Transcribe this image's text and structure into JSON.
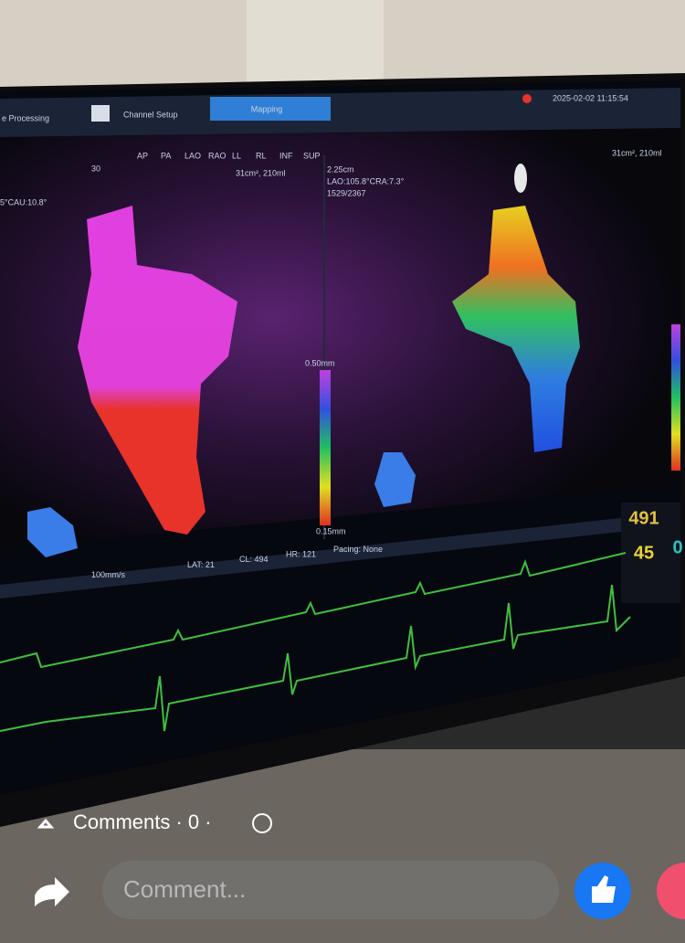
{
  "tabs": [
    "e Processing",
    "Channel Setup",
    "Mapping"
  ],
  "timestamp": "2025-02-02 11:15:54",
  "view_buttons": [
    "AP",
    "PA",
    "LAO",
    "RAO",
    "LL",
    "RL",
    "INF",
    "SUP"
  ],
  "left_map": {
    "volume": "31cm², 210ml",
    "angle": "5°CAU:10.8°",
    "scale_max": "0.50mm",
    "scale_min": "0.15mm",
    "ruler": "30"
  },
  "right_map": {
    "distance": "2.25cm",
    "angle": "LAO:105.8°CRA:7.3°",
    "points": "1529/2367",
    "volume": "31cm², 210ml"
  },
  "status_bar": [
    "100mm/s",
    "LAT: 21",
    "CL: 494",
    "HR: 121",
    "Pacing: None"
  ],
  "side_values": [
    "491",
    "45",
    "0"
  ],
  "comments": {
    "label": "Comments · 0 ·",
    "placeholder": "Comment..."
  }
}
